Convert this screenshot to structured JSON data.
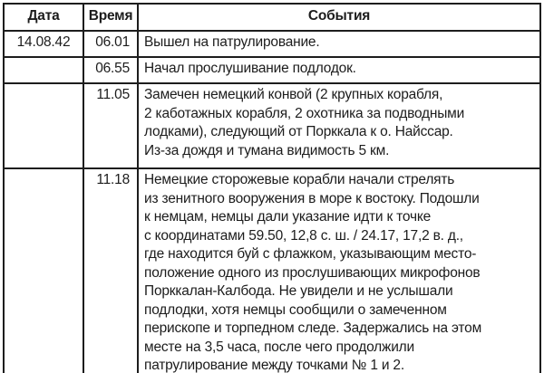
{
  "table": {
    "headers": {
      "date": "Дата",
      "time": "Время",
      "events": "События"
    },
    "rows": [
      {
        "date": "14.08.42",
        "time": "06.01",
        "event": "Вышел на патрулирование."
      },
      {
        "date": "",
        "time": "06.55",
        "event": "Начал прослушивание подлодок."
      },
      {
        "date": "",
        "time": "11.05",
        "event": "Замечен немецкий конвой (2 крупных корабля,\n2 каботажных корабля, 2 охотника за подводными\nлодками), следующий от Порккала к о. Найссар.\nИз-за дождя и тумана видимость 5 км."
      },
      {
        "date": "",
        "time": "11.18",
        "event": "Немецкие сторожевые корабли начали стрелять\nиз зенитного вооружения в море к востоку. Подошли\nк немцам, немцы дали указание идти к точке\nс координатами 59.50, 12,8 с. ш. / 24.17, 17,2 в. д.,\nгде находится буй с флажком, указывающим место-\nположение одного из прослушивающих микрофонов\nПорккалан-Калбода. Не увидели и не услышали\nподлодки, хотя немцы сообщили о замеченном\nперископе и торпедном следе. Задержались на этом\nместе на 3,5 часа, после чего продолжили\nпатрулирование между точками № 1 и 2."
      }
    ],
    "colors": {
      "text": "#1c1c1c",
      "border": "#1d1d1d",
      "background": "#ffffff"
    }
  }
}
